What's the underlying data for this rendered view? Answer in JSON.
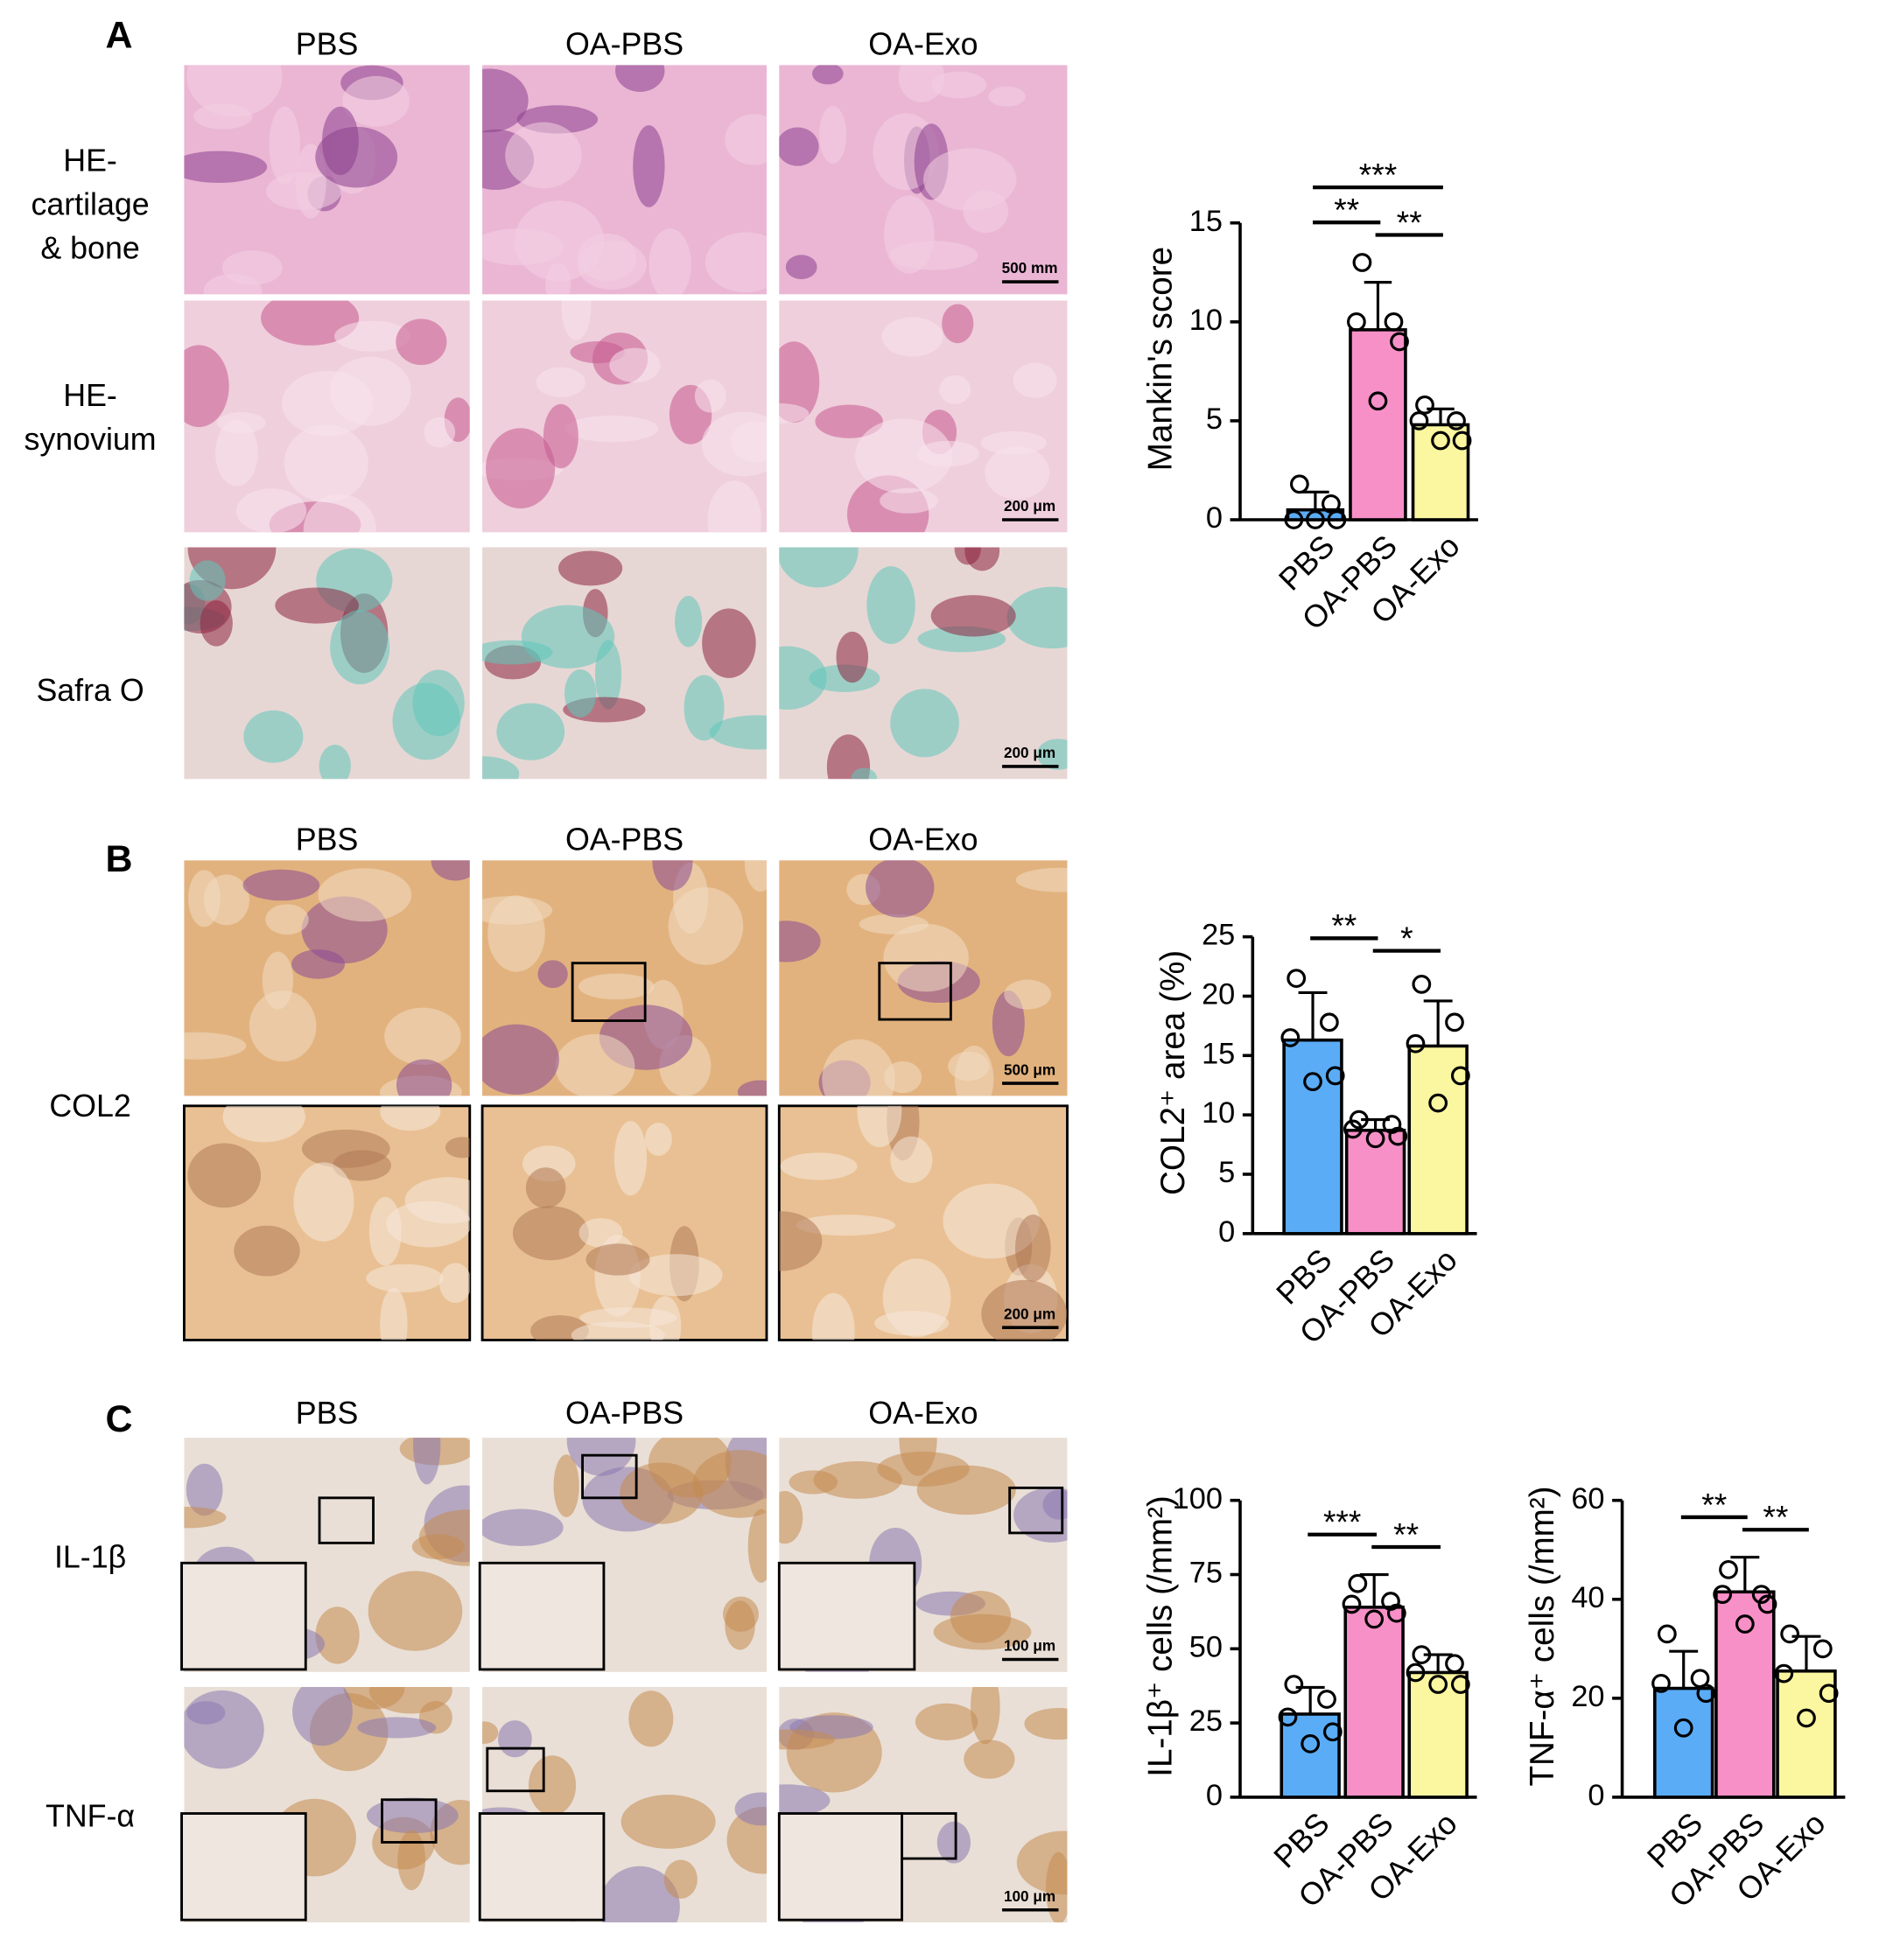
{
  "panels": [
    {
      "label": "A",
      "columns": [
        "PBS",
        "OA-PBS",
        "OA-Exo"
      ],
      "rows": [
        [
          "HE-",
          "cartilage",
          "& bone"
        ],
        [
          "HE-",
          "synovium"
        ],
        [
          "Safra O"
        ]
      ],
      "scale_bars": [
        "500 mm",
        "200 μm",
        "200 μm"
      ]
    },
    {
      "label": "B",
      "columns": [
        "PBS",
        "OA-PBS",
        "OA-Exo"
      ],
      "rows": [
        [
          "COL2"
        ]
      ],
      "scale_bars": [
        "500 μm",
        "200 μm"
      ]
    },
    {
      "label": "C",
      "columns": [
        "PBS",
        "OA-PBS",
        "OA-Exo"
      ],
      "rows": [
        [
          "IL-1β"
        ],
        [
          "TNF-α"
        ]
      ],
      "scale_bars": [
        "100 μm",
        "100 μm"
      ]
    }
  ],
  "chart_data": [
    {
      "type": "bar",
      "y_label": "Mankin's score",
      "categories": [
        "PBS",
        "OA-PBS",
        "OA-Exo"
      ],
      "values": [
        0.5,
        9.6,
        4.8
      ],
      "errors": [
        0.9,
        2.4,
        0.8
      ],
      "points": [
        [
          1.8,
          0.8,
          0,
          0,
          0
        ],
        [
          13,
          10,
          10,
          9,
          6
        ],
        [
          5.8,
          5,
          5,
          4,
          4
        ]
      ],
      "colors": [
        "#5aacf6",
        "#f890c8",
        "#fbf7a0"
      ],
      "ylim": [
        0,
        15
      ],
      "yticks": [
        0,
        5,
        10,
        15
      ],
      "significance": [
        {
          "label": "**",
          "between": [
            "PBS",
            "OA-PBS"
          ]
        },
        {
          "label": "**",
          "between": [
            "OA-PBS",
            "OA-Exo"
          ]
        },
        {
          "label": "***",
          "between": [
            "PBS",
            "OA-Exo"
          ]
        }
      ]
    },
    {
      "type": "bar",
      "y_label": "COL2⁺ area (%)",
      "categories": [
        "PBS",
        "OA-PBS",
        "OA-Exo"
      ],
      "values": [
        16.3,
        8.7,
        15.8
      ],
      "errors": [
        4.0,
        0.9,
        3.8
      ],
      "points": [
        [
          21.5,
          17.8,
          16.5,
          13.3,
          12.8
        ],
        [
          9.6,
          9.2,
          8.8,
          8.2,
          8.0
        ],
        [
          21,
          17.8,
          16,
          13.3,
          11
        ]
      ],
      "colors": [
        "#5aacf6",
        "#f890c8",
        "#fbf7a0"
      ],
      "ylim": [
        0,
        25
      ],
      "yticks": [
        0,
        5,
        10,
        15,
        20,
        25
      ],
      "significance": [
        {
          "label": "**",
          "between": [
            "PBS",
            "OA-PBS"
          ]
        },
        {
          "label": "*",
          "between": [
            "OA-PBS",
            "OA-Exo"
          ]
        }
      ]
    },
    {
      "type": "bar",
      "y_label": "IL-1β⁺ cells (/mm²)",
      "categories": [
        "PBS",
        "OA-PBS",
        "OA-Exo"
      ],
      "values": [
        28,
        64,
        42
      ],
      "errors": [
        9,
        11,
        6
      ],
      "points": [
        [
          38,
          33,
          27,
          22,
          18
        ],
        [
          72,
          66,
          65,
          62,
          60
        ],
        [
          48,
          45,
          42,
          38,
          38
        ]
      ],
      "colors": [
        "#5aacf6",
        "#f890c8",
        "#fbf7a0"
      ],
      "ylim": [
        0,
        100
      ],
      "yticks": [
        0,
        25,
        50,
        75,
        100
      ],
      "significance": [
        {
          "label": "***",
          "between": [
            "PBS",
            "OA-PBS"
          ]
        },
        {
          "label": "**",
          "between": [
            "OA-PBS",
            "OA-Exo"
          ]
        }
      ]
    },
    {
      "type": "bar",
      "y_label": "TNF-α⁺ cells (/mm²)",
      "categories": [
        "PBS",
        "OA-PBS",
        "OA-Exo"
      ],
      "values": [
        22,
        41.5,
        25.5
      ],
      "errors": [
        7.5,
        7,
        7
      ],
      "points": [
        [
          33,
          24,
          23,
          21,
          14
        ],
        [
          46,
          41,
          41,
          39,
          35
        ],
        [
          33,
          30,
          25,
          21,
          16
        ]
      ],
      "colors": [
        "#5aacf6",
        "#f890c8",
        "#fbf7a0"
      ],
      "ylim": [
        0,
        60
      ],
      "yticks": [
        0,
        20,
        40,
        60
      ],
      "significance": [
        {
          "label": "**",
          "between": [
            "PBS",
            "OA-PBS"
          ]
        },
        {
          "label": "**",
          "between": [
            "OA-PBS",
            "OA-Exo"
          ]
        }
      ]
    }
  ]
}
